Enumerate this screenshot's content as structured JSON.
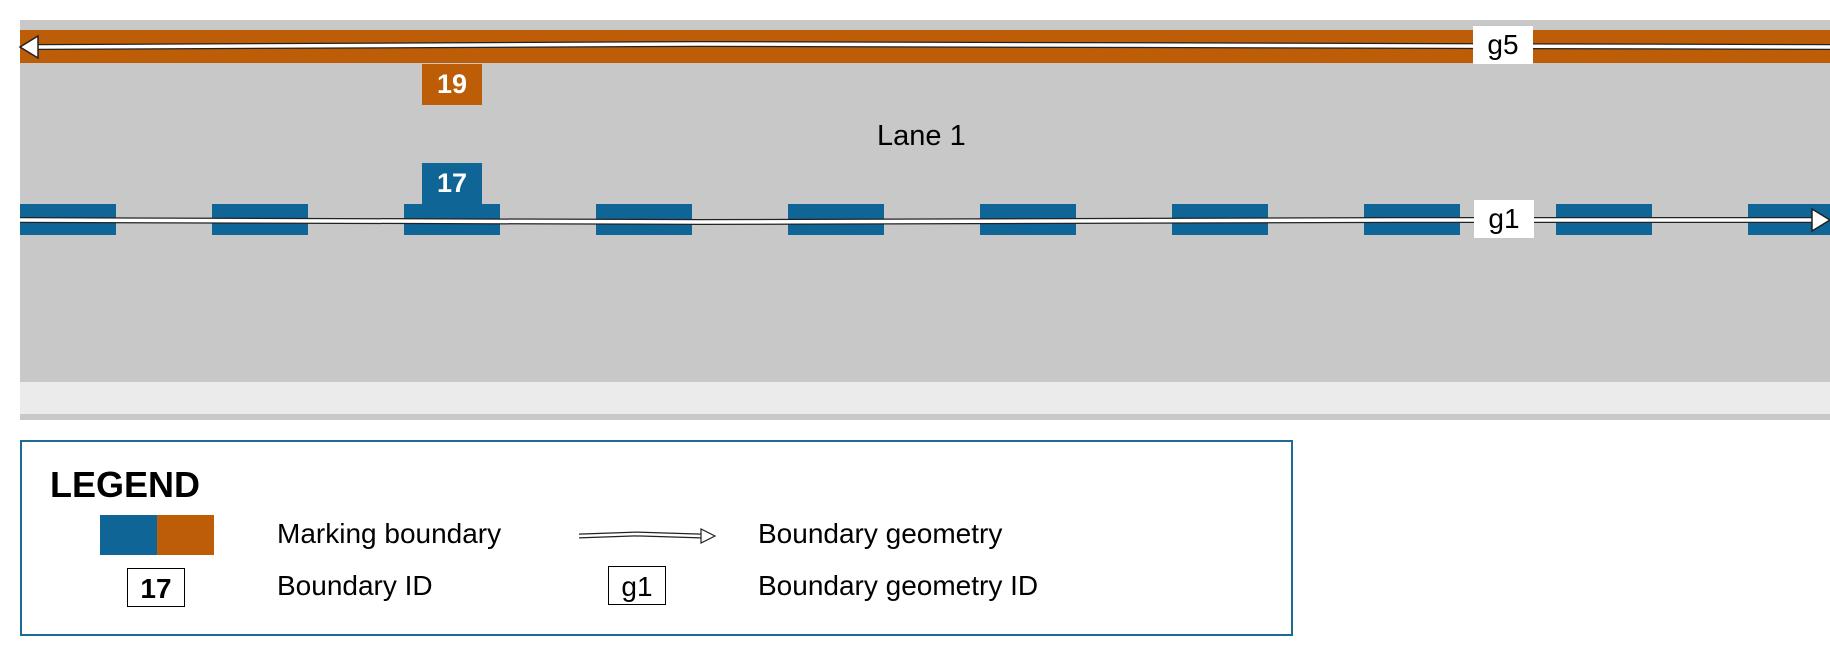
{
  "diagram": {
    "lane_label": "Lane 1",
    "boundary_top_id": "19",
    "boundary_center_id": "17",
    "geometry_top_id": "g5",
    "geometry_center_id": "g1",
    "colors": {
      "road": "#c8c8c8",
      "shoulder": "#ebebeb",
      "blue_marking": "#0e6596",
      "orange_marking": "#bd5d08"
    }
  },
  "legend": {
    "title": "LEGEND",
    "marking_boundary_label": "Marking boundary",
    "boundary_geometry_label": "Boundary geometry",
    "boundary_id_label": "Boundary ID",
    "boundary_id_example": "17",
    "boundary_geometry_id_label": "Boundary geometry ID",
    "boundary_geometry_id_example": "g1"
  }
}
